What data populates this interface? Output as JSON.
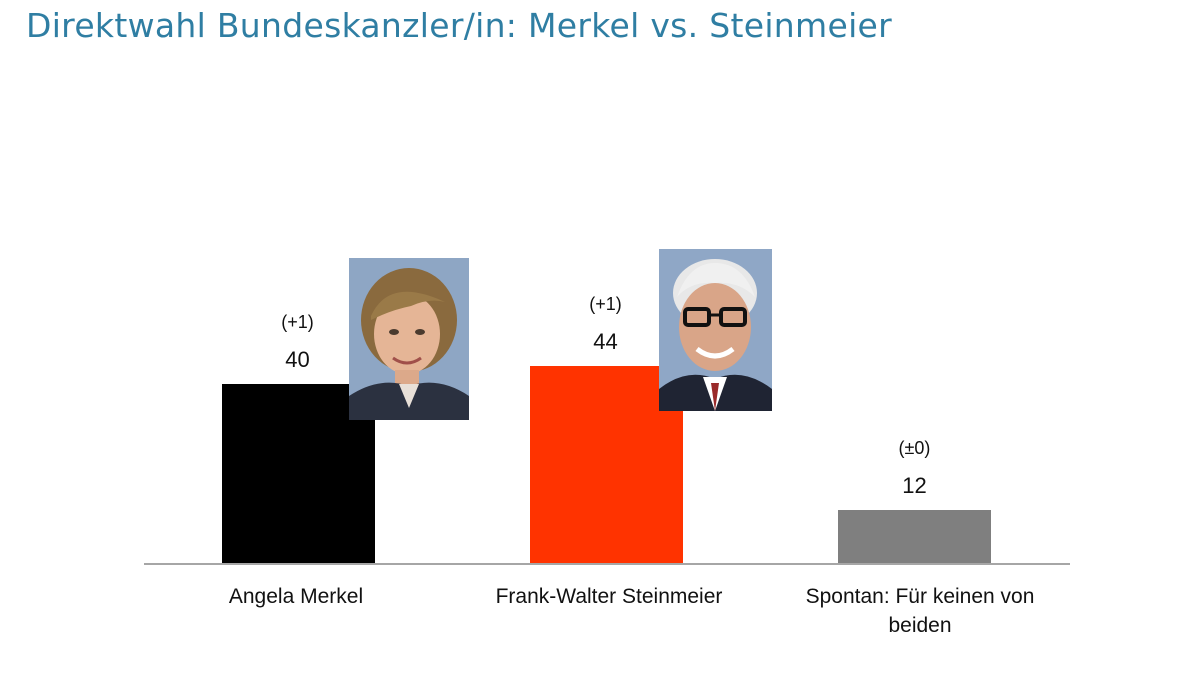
{
  "chart_data": {
    "type": "bar",
    "title": "Direktwahl Bundeskanzler/in: Merkel vs. Steinmeier",
    "categories": [
      "Angela Merkel",
      "Frank-Walter Steinmeier",
      "Spontan: Für keinen von beiden"
    ],
    "values": [
      40,
      44,
      12
    ],
    "changes": [
      "(+1)",
      "(+1)",
      "(±0)"
    ],
    "colors": [
      "#000000",
      "#ff3300",
      "#7f7f7f"
    ],
    "xlabel": "",
    "ylabel": "",
    "ylim": [
      0,
      88
    ],
    "grid": false
  },
  "cat_lines": [
    [
      "Angela Merkel"
    ],
    [
      "Frank-Walter Steinmeier"
    ],
    [
      "Spontan: Für keinen von",
      "beiden"
    ]
  ],
  "portraits": [
    {
      "icon": "portrait-angela-merkel-icon"
    },
    {
      "icon": "portrait-frank-walter-steinmeier-icon"
    }
  ]
}
